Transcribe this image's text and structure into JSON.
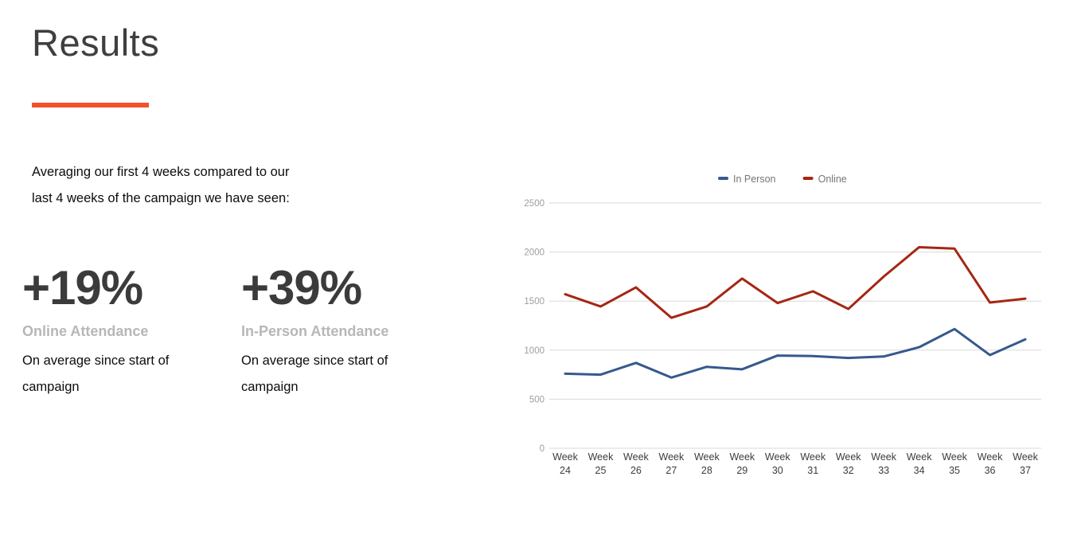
{
  "slide": {
    "title": "Results",
    "accent_color": "#f4502c",
    "intro_line1": "Averaging our first 4 weeks compared to our",
    "intro_line2": "last 4 weeks of the campaign we have seen:",
    "stats": [
      {
        "value": "+19%",
        "label": "Online Attendance",
        "desc_line1": "On average since start of",
        "desc_line2": "campaign"
      },
      {
        "value": "+39%",
        "label": "In-Person Attendance",
        "desc_line1": "On average since start of",
        "desc_line2": "campaign"
      }
    ]
  },
  "chart_data": {
    "type": "line",
    "categories": [
      "Week 24",
      "Week 25",
      "Week 26",
      "Week 27",
      "Week 28",
      "Week 29",
      "Week 30",
      "Week 31",
      "Week 32",
      "Week 33",
      "Week 34",
      "Week 35",
      "Week 36",
      "Week 37"
    ],
    "series": [
      {
        "name": "In Person",
        "color": "#36598d",
        "values": [
          760,
          750,
          870,
          720,
          830,
          805,
          945,
          940,
          920,
          935,
          1030,
          1215,
          950,
          1110
        ]
      },
      {
        "name": "Online",
        "color": "#a52714",
        "values": [
          1570,
          1445,
          1640,
          1330,
          1445,
          1730,
          1480,
          1600,
          1420,
          1750,
          2050,
          2035,
          1485,
          1525
        ]
      }
    ],
    "ylim": [
      0,
      2500
    ],
    "yticks": [
      0,
      500,
      1000,
      1500,
      2000,
      2500
    ],
    "grid": true,
    "legend_position": "top",
    "gridline_color": "#d9d9d9",
    "ytick_color": "#9e9e9e",
    "xtick_color": "#3c3c3c",
    "legend_text_color": "#757575"
  }
}
